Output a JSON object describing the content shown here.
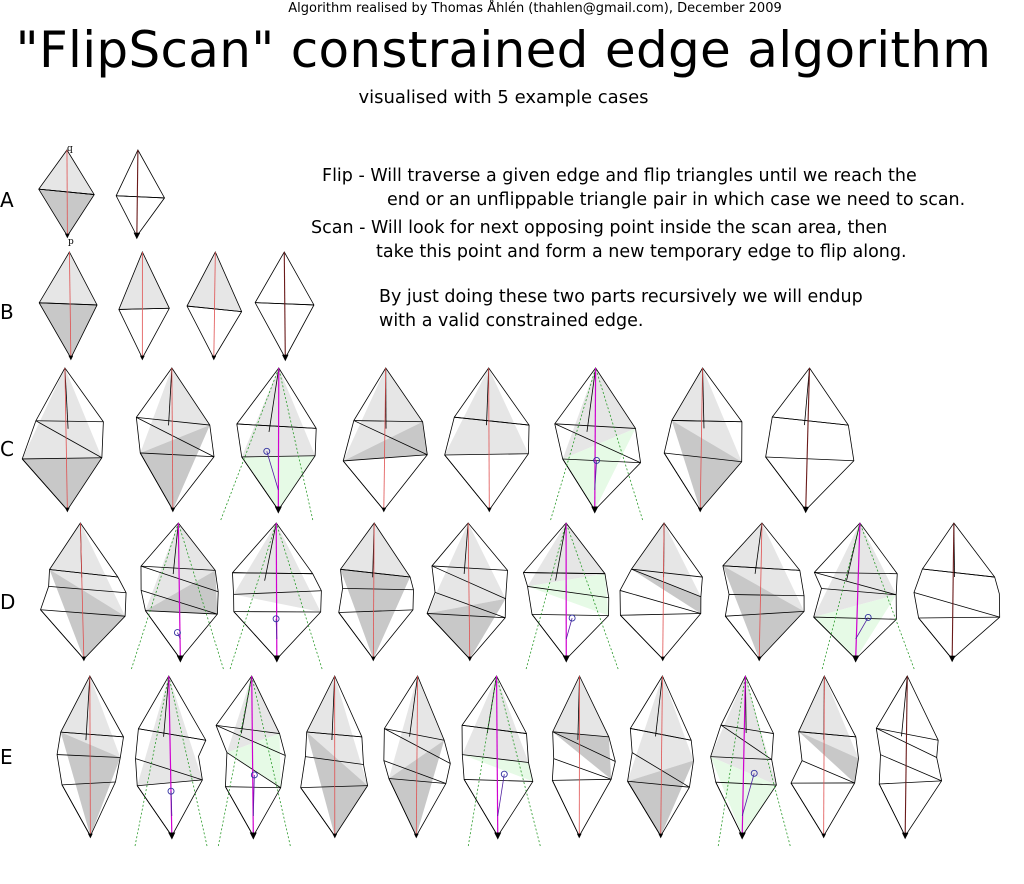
{
  "header": {
    "credit": "Algorithm realised by Thomas Åhlén (thahlen@gmail.com), December 2009",
    "title": "\"FlipScan\" constrained edge algorithm",
    "subtitle": "visualised with 5 example cases"
  },
  "description": {
    "flip_term": "Flip -",
    "flip_line1": "Will traverse a given edge and flip triangles until we reach the",
    "flip_line2": "end or an unflippable triangle pair in which case we need to scan.",
    "scan_term": "Scan -",
    "scan_line1": "Will look for next opposing point inside the scan area, then",
    "scan_line2": "take this point and form a new temporary edge to flip along.",
    "summary_line1": "By just doing these two parts recursively we will endup",
    "summary_line2": "with a valid constrained edge."
  },
  "cases": [
    {
      "label": "A",
      "steps": 2
    },
    {
      "label": "B",
      "steps": 4
    },
    {
      "label": "C",
      "steps": 8
    },
    {
      "label": "D",
      "steps": 10
    },
    {
      "label": "E",
      "steps": 11
    }
  ],
  "point_labels": {
    "q": "q",
    "p": "p"
  },
  "colors": {
    "stroke": "#000000",
    "constraint_edge": "#e05050",
    "scan_edge": "#d000d0",
    "scan_area_line": "#2a9a2a",
    "shade_dark": "#c8c8c8",
    "shade_light": "#e6e6e6",
    "scan_fill": "#e6fae6",
    "scan_point": "#3030a0"
  }
}
